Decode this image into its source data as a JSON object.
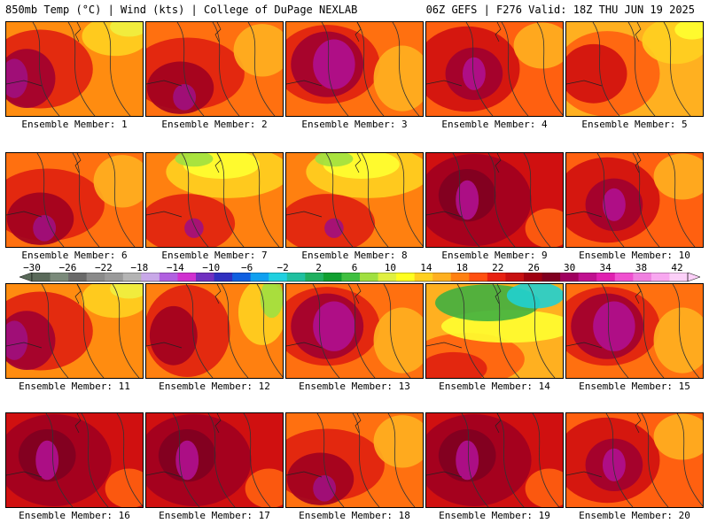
{
  "header": {
    "left": "850mb Temp (°C) | Wind (kts) | College of DuPage NEXLAB",
    "right": "06Z GEFS | F276 Valid: 18Z THU JUN 19 2025"
  },
  "colorbar": {
    "labels": [
      "−30",
      "−26",
      "−22",
      "−18",
      "−14",
      "−10",
      "−6",
      "−2",
      "2",
      "6",
      "10",
      "14",
      "18",
      "22",
      "26",
      "30",
      "34",
      "38",
      "42"
    ],
    "colors": [
      "#5a6a5a",
      "#7a8a7a",
      "#6a6a6a",
      "#8a8a8a",
      "#9a9a9a",
      "#b4b4b4",
      "#c8a8e8",
      "#b060e0",
      "#d030d0",
      "#7030c0",
      "#3030c0",
      "#1060e0",
      "#10a0f0",
      "#20d0e0",
      "#20c0a0",
      "#20b060",
      "#10a030",
      "#40c040",
      "#a0e040",
      "#e0f040",
      "#ffff20",
      "#ffd020",
      "#ffb020",
      "#ff8010",
      "#ff5010",
      "#e82010",
      "#c81010",
      "#a00010",
      "#800020",
      "#a00060",
      "#c01090",
      "#e020b0",
      "#f050d0",
      "#f080e0",
      "#f8a8f0",
      "#fcd0f8"
    ]
  },
  "members": [
    {
      "label": "Ensemble Member: 1",
      "scheme": "hot-west-warm-northeast"
    },
    {
      "label": "Ensemble Member: 2",
      "scheme": "hot-southwest"
    },
    {
      "label": "Ensemble Member: 3",
      "scheme": "magenta-core"
    },
    {
      "label": "Ensemble Member: 4",
      "scheme": "hot-west"
    },
    {
      "label": "Ensemble Member: 5",
      "scheme": "warm-northeast"
    },
    {
      "label": "Ensemble Member: 6",
      "scheme": "hot-southwest"
    },
    {
      "label": "Ensemble Member: 7",
      "scheme": "cool-north"
    },
    {
      "label": "Ensemble Member: 8",
      "scheme": "cool-north"
    },
    {
      "label": "Ensemble Member: 9",
      "scheme": "very-hot"
    },
    {
      "label": "Ensemble Member: 10",
      "scheme": "hot-west"
    },
    {
      "label": "Ensemble Member: 11",
      "scheme": "hot-west-warm-northeast"
    },
    {
      "label": "Ensemble Member: 12",
      "scheme": "cool-east"
    },
    {
      "label": "Ensemble Member: 13",
      "scheme": "magenta-core"
    },
    {
      "label": "Ensemble Member: 14",
      "scheme": "cold-north"
    },
    {
      "label": "Ensemble Member: 15",
      "scheme": "magenta-core"
    },
    {
      "label": "Ensemble Member: 16",
      "scheme": "very-hot"
    },
    {
      "label": "Ensemble Member: 17",
      "scheme": "very-hot"
    },
    {
      "label": "Ensemble Member: 18",
      "scheme": "hot-southwest"
    },
    {
      "label": "Ensemble Member: 19",
      "scheme": "very-hot"
    },
    {
      "label": "Ensemble Member: 20",
      "scheme": "hot-west"
    }
  ]
}
